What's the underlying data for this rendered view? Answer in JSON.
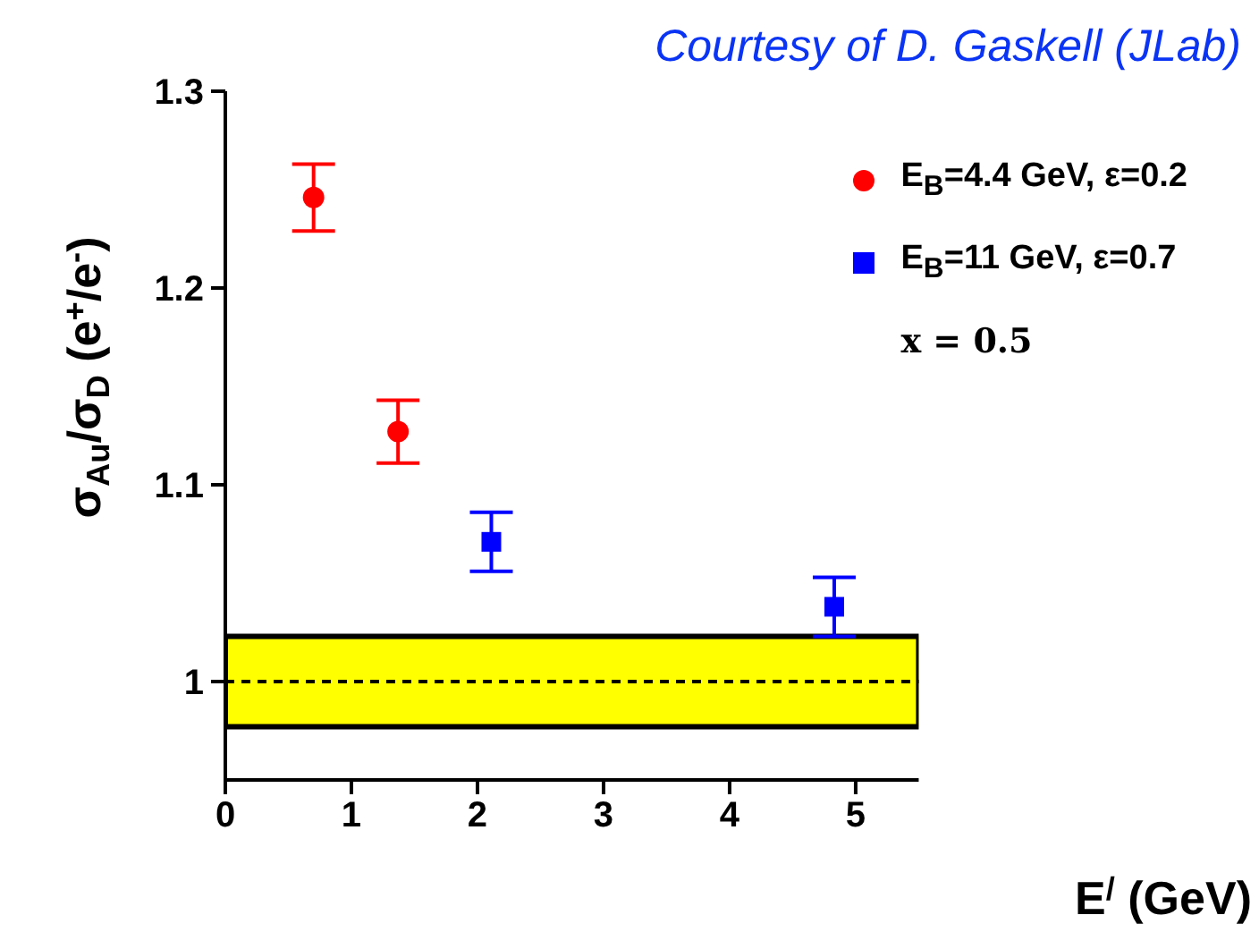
{
  "chart_data": {
    "type": "scatter",
    "xlabel": "E$^{/}$ (GeV)",
    "ylabel": "σ$_{Au}$/σ$_{D}$ (e$^{+}$/e$^{-}$)",
    "annotations": [
      "Courtesy of D. Gaskell (JLab)",
      "x = 0.5"
    ],
    "xlim": [
      0,
      5.5
    ],
    "xticks": [
      0,
      1,
      2,
      3,
      4,
      5
    ],
    "ylim": [
      0.95,
      1.3
    ],
    "yticks": [
      1,
      1.1,
      1.2,
      1.3
    ],
    "legend": "top right",
    "grid": false,
    "series": [
      {
        "name": "E$_{B}$=4.4 GeV, ε=0.2",
        "color": "#ff0000",
        "marker": "circle",
        "x": [
          0.7,
          1.37
        ],
        "values": [
          1.246,
          1.127
        ],
        "errors": [
          0.017,
          0.016
        ]
      },
      {
        "name": "E$_{B}$=11 GeV, ε=0.7",
        "color": "#0000ff",
        "marker": "square",
        "x": [
          2.11,
          4.83
        ],
        "values": [
          1.071,
          1.038
        ],
        "errors": [
          0.015,
          0.015
        ]
      }
    ],
    "ref_lines": [
      {
        "axis": "y",
        "value": 1,
        "line_style": "dashed",
        "color": "#000000"
      }
    ],
    "bands": [
      {
        "axis": "y",
        "from": 0.977,
        "to": 1.023,
        "color": "#ffff00"
      }
    ]
  }
}
